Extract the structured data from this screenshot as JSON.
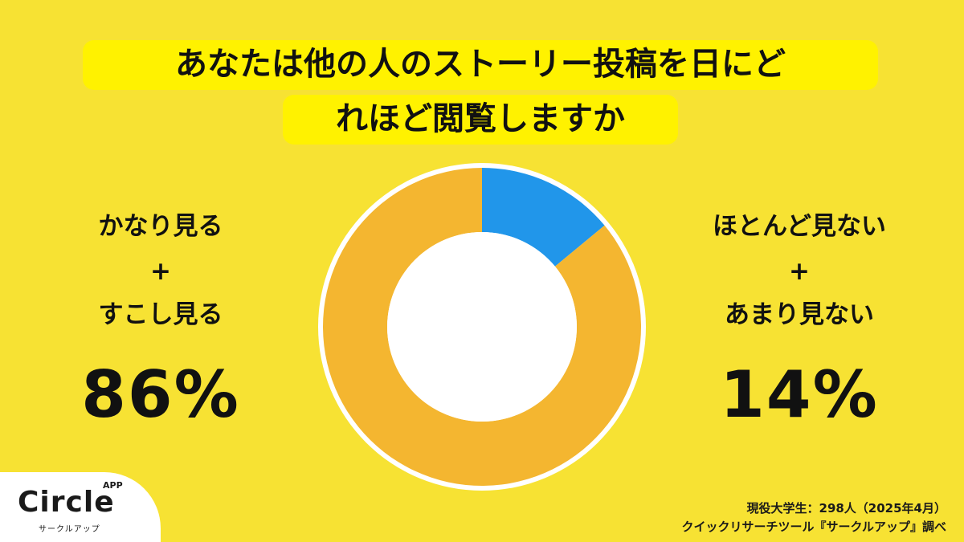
{
  "title": {
    "line1": "あなたは他の人のストーリー投稿を日にど",
    "line2": "れほど閲覧しますか"
  },
  "left": {
    "line1": "かなり見る",
    "plus": "+",
    "line2": "すこし見る",
    "percent": "86%"
  },
  "right": {
    "line1": "ほとんど見ない",
    "plus": "+",
    "line2": "あまり見ない",
    "percent": "14%"
  },
  "footnote": {
    "line1": "現役大学生：298人（2025年4月）",
    "line2": "クイックリサーチツール『サークルアップ』調べ"
  },
  "logo": {
    "word": "Circle",
    "app": "APP",
    "sub": "サークルアップ"
  },
  "colors": {
    "background": "#F7E233",
    "title_highlight": "#FFF200",
    "segment_see": "#F4B630",
    "segment_not_see": "#2196EA"
  },
  "chart_data": {
    "type": "pie",
    "style": "donut",
    "slices": [
      {
        "label": "ほとんど見ない+あまり見ない",
        "value": 14,
        "color": "#2196EA"
      },
      {
        "label": "かなり見る+すこし見る",
        "value": 86,
        "color": "#F4B630"
      }
    ]
  }
}
